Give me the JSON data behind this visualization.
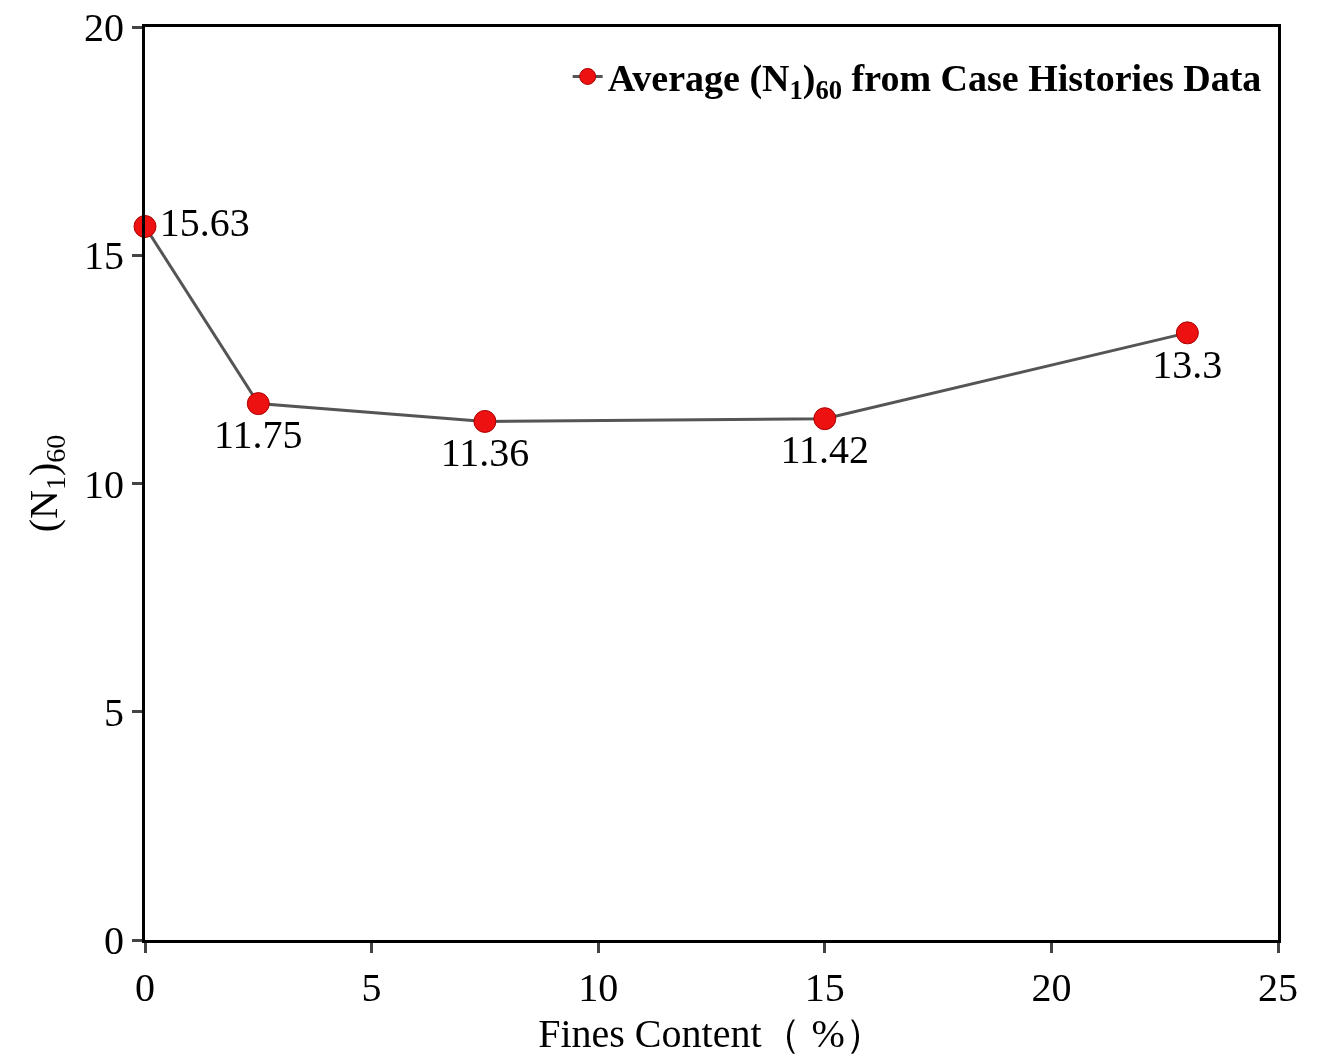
{
  "chart_data": {
    "type": "line",
    "xlabel": "Fines Content（ %）",
    "ylabel": "(N$_{1}$)$_{60}$",
    "x": [
      0,
      2.5,
      7.5,
      15,
      23
    ],
    "series": [
      {
        "name": "Average (N$_{1}$)$_{60}$ from Case Histories Data",
        "color": "#555555",
        "values": [
          15.63,
          11.75,
          11.36,
          11.42,
          13.3
        ]
      }
    ],
    "xlim": [
      0,
      25
    ],
    "xticks": [
      0,
      5,
      10,
      15,
      20,
      25
    ],
    "ylim": [
      0,
      20
    ],
    "yticks": [
      0,
      5,
      10,
      15,
      20
    ],
    "grid": false,
    "legend": "top right",
    "marker": "circle",
    "line_style": "solid",
    "data_labels": true
  }
}
